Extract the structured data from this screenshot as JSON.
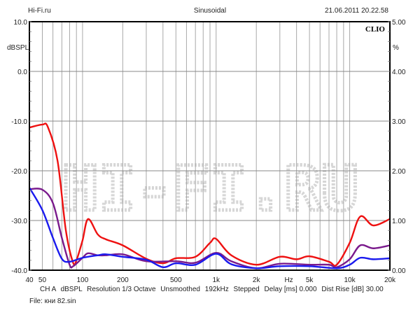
{
  "header": {
    "left": "Hi-Fi.ru",
    "center": "Sinusoidal",
    "right": "21.06.2011 20.22.58"
  },
  "brand": "CLIO",
  "watermark": "HI-FI.RU",
  "footer": {
    "info": [
      "CH A",
      "dBSPL",
      "Resolution 1/3 Octave",
      "Unsmoothed",
      "192kHz",
      "Stepped",
      "Delay [ms] 0.000",
      "Dist Rise [dB] 30.00"
    ],
    "file": "File: кни 82.sin"
  },
  "chart_data": {
    "type": "line",
    "title": "Sinusoidal",
    "xlabel": "Hz",
    "ylabel": "dBSPL",
    "ylabel_right": "%",
    "xscale": "log",
    "xlim": [
      40,
      20000
    ],
    "ylim": [
      -40,
      10
    ],
    "ylim_right": [
      0,
      5
    ],
    "grid": true,
    "x_ticks": [
      {
        "v": 40,
        "l": "40"
      },
      {
        "v": 50,
        "l": "50"
      },
      {
        "v": 100,
        "l": "100"
      },
      {
        "v": 200,
        "l": "200"
      },
      {
        "v": 500,
        "l": "500"
      },
      {
        "v": 1000,
        "l": "1k"
      },
      {
        "v": 2000,
        "l": "2k"
      },
      {
        "v": 3500,
        "l": "Hz"
      },
      {
        "v": 5000,
        "l": "5k"
      },
      {
        "v": 10000,
        "l": "10k"
      },
      {
        "v": 20000,
        "l": "20k"
      }
    ],
    "x_grid": [
      50,
      60,
      70,
      80,
      90,
      100,
      200,
      300,
      400,
      500,
      600,
      700,
      800,
      900,
      1000,
      2000,
      3000,
      4000,
      5000,
      6000,
      7000,
      8000,
      9000,
      10000,
      20000
    ],
    "y_ticks": [
      {
        "v": 10,
        "l": "10.0"
      },
      {
        "v": 0,
        "l": "0.0"
      },
      {
        "v": -10,
        "l": "-10.0"
      },
      {
        "v": -20,
        "l": "-20.0"
      },
      {
        "v": -30,
        "l": "-30.0"
      },
      {
        "v": -40,
        "l": "-40.0"
      }
    ],
    "y_ticks_right": [
      "5.00",
      "4.00",
      "3.00",
      "2.00",
      "1.00",
      "0.00"
    ],
    "series": [
      {
        "name": "red",
        "color": "#ee1111",
        "x": [
          40,
          50,
          55,
          65,
          75,
          85,
          90,
          100,
          110,
          130,
          150,
          200,
          300,
          400,
          500,
          700,
          900,
          1000,
          1300,
          2000,
          3000,
          4000,
          5000,
          7000,
          8000,
          10000,
          12000,
          15000,
          20000
        ],
        "y": [
          -11.3,
          -10.7,
          -11.2,
          -18,
          -32,
          -38.5,
          -38,
          -34,
          -29.7,
          -32.8,
          -33.8,
          -35,
          -37.7,
          -38.6,
          -37.6,
          -37.3,
          -34.5,
          -33.7,
          -37,
          -38.9,
          -37.3,
          -37.8,
          -37.2,
          -38.3,
          -38.9,
          -34.5,
          -29.2,
          -31,
          -29.7
        ]
      },
      {
        "name": "purple",
        "color": "#7a1a8c",
        "x": [
          40,
          50,
          60,
          70,
          80,
          85,
          100,
          110,
          130,
          150,
          200,
          300,
          500,
          700,
          1000,
          1300,
          2000,
          3000,
          5000,
          7000,
          8000,
          10000,
          12000,
          15000,
          20000
        ],
        "y": [
          -23.7,
          -23.8,
          -26.5,
          -33.5,
          -38.9,
          -39.2,
          -37.5,
          -36.6,
          -37,
          -37,
          -36.8,
          -38.2,
          -38.2,
          -38.5,
          -36.5,
          -38.2,
          -39.6,
          -38.7,
          -38.9,
          -38.9,
          -39.4,
          -37.8,
          -35,
          -35.6,
          -35
        ]
      },
      {
        "name": "blue",
        "color": "#1a1aee",
        "x": [
          40,
          50,
          60,
          70,
          80,
          100,
          130,
          150,
          200,
          300,
          400,
          500,
          700,
          1000,
          1300,
          2000,
          3000,
          5000,
          8000,
          10000,
          12000,
          15000,
          20000
        ],
        "y": [
          -23.4,
          -27.9,
          -33.5,
          -37.7,
          -38.3,
          -37.5,
          -37,
          -36.8,
          -37.3,
          -37.9,
          -39.4,
          -38.6,
          -38.9,
          -36.7,
          -38.8,
          -39.6,
          -39.2,
          -39.2,
          -39.6,
          -38.9,
          -37.5,
          -37.8,
          -37.6
        ]
      }
    ]
  }
}
